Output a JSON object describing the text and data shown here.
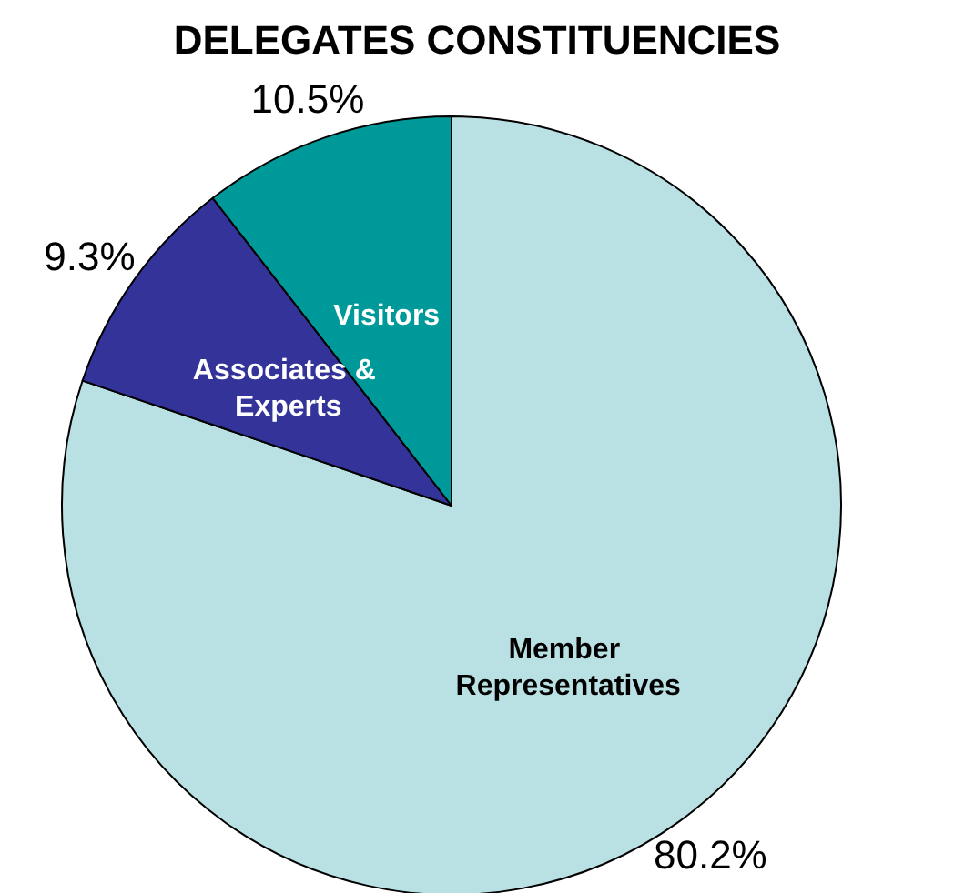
{
  "chart_data": {
    "type": "pie",
    "title": "DELEGATES CONSTITUENCIES",
    "categories": [
      "Member Representatives",
      "Associates & Experts",
      "Visitors"
    ],
    "values": [
      80.2,
      9.3,
      10.5
    ],
    "value_labels": [
      "80.2%",
      "9.3%",
      "10.5%"
    ],
    "colors": [
      "#b9e0e3",
      "#333399",
      "#009999"
    ],
    "legend": false
  }
}
